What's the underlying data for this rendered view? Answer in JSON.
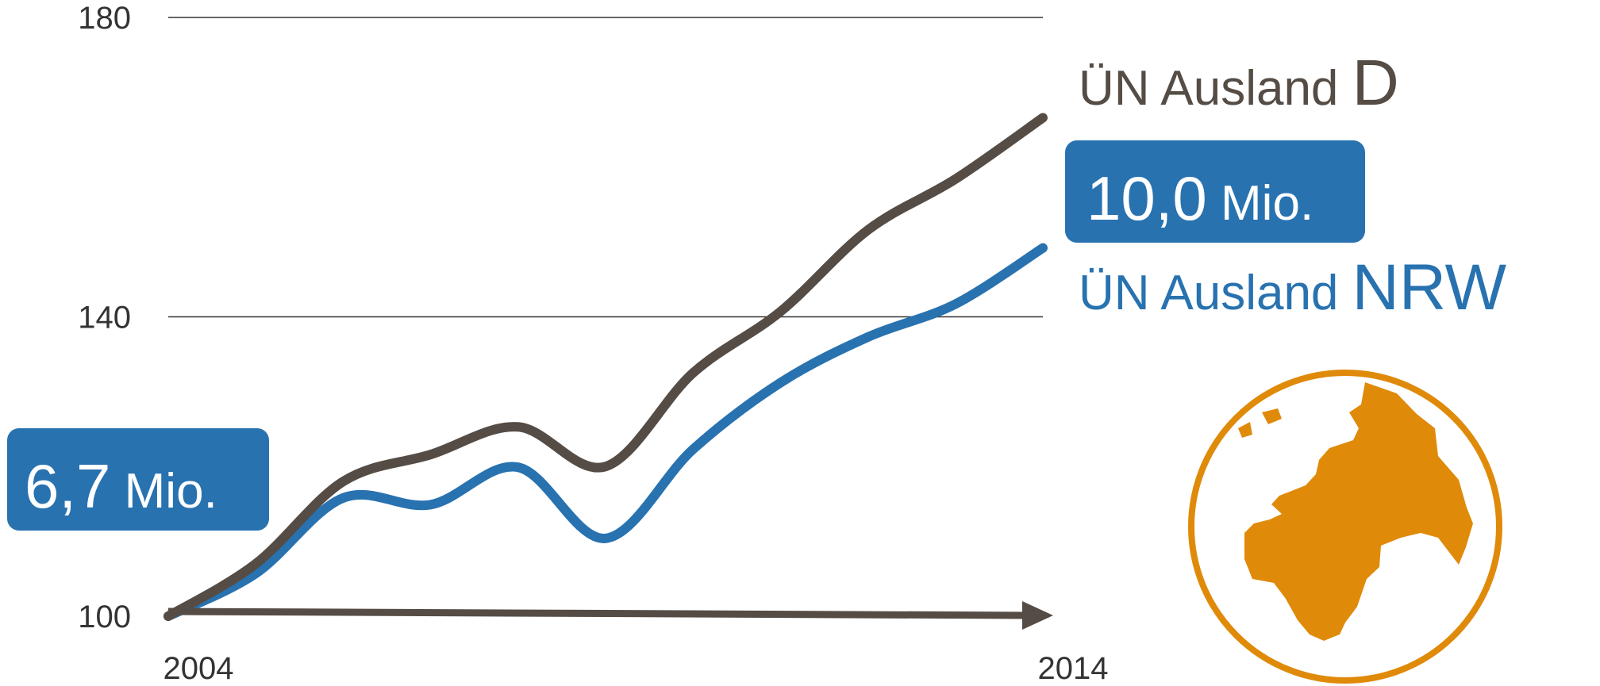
{
  "chart_data": {
    "type": "line",
    "x": [
      2004,
      2005,
      2006,
      2007,
      2008,
      2009,
      2010,
      2011,
      2012,
      2013,
      2014
    ],
    "xlim": [
      2004,
      2014
    ],
    "xticks": [
      2004,
      2014
    ],
    "ylim": [
      100,
      180
    ],
    "yticks": [
      100,
      140,
      180
    ],
    "grid": true,
    "series": [
      {
        "name": "ÜN Ausland D",
        "color": "#554c45",
        "values": [
          100,
          107,
          118,
          121.6,
          125.3,
          120,
          132.5,
          140.7,
          151.6,
          158.4,
          166.6
        ]
      },
      {
        "name": "ÜN Ausland NRW",
        "color": "#2872b0",
        "values": [
          100,
          105.7,
          115.8,
          114.9,
          119.9,
          110.4,
          122.3,
          131.2,
          137.3,
          141.7,
          149.2
        ]
      }
    ],
    "annotations": [
      {
        "text": "10,0 Mio."
      },
      {
        "text": "6,7 Mio."
      }
    ]
  }
}
